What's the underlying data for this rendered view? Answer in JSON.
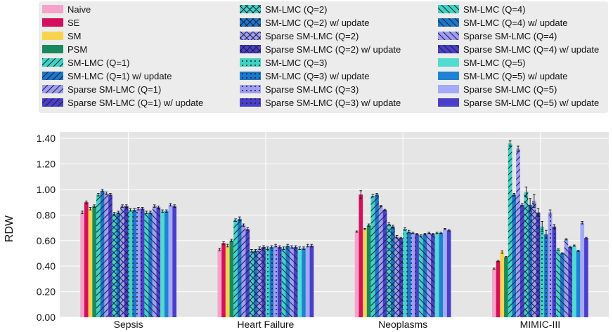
{
  "chart_data": {
    "type": "bar",
    "title": "",
    "xlabel": "",
    "ylabel": "RDW",
    "ylim": [
      0,
      1.45
    ],
    "yticks": [
      0.0,
      0.2,
      0.4,
      0.6,
      0.8,
      1.0,
      1.2,
      1.4
    ],
    "ytick_labels": [
      "0.00",
      "0.20",
      "0.40",
      "0.60",
      "0.80",
      "1.00",
      "1.20",
      "1.40"
    ],
    "grid": true,
    "legend_position": "top",
    "categories": [
      "Sepsis",
      "Heart Failure",
      "Neoplasms",
      "MIMIC-III"
    ],
    "series": [
      {
        "name": "Naive",
        "color": "#f4a3c9",
        "hatch": "none",
        "values": [
          0.82,
          0.53,
          0.67,
          0.38
        ],
        "errors": [
          0.01,
          0.01,
          0.005,
          0.005
        ]
      },
      {
        "name": "SE",
        "color": "#d40f5b",
        "hatch": "none",
        "values": [
          0.9,
          0.58,
          0.96,
          0.44
        ],
        "errors": [
          0.01,
          0.01,
          0.03,
          0.005
        ]
      },
      {
        "name": "SM",
        "color": "#f8d34e",
        "hatch": "none",
        "values": [
          0.85,
          0.56,
          0.69,
          0.51
        ],
        "errors": [
          0.01,
          0.01,
          0.005,
          0.01
        ]
      },
      {
        "name": "PSM",
        "color": "#1a8a5e",
        "hatch": "none",
        "values": [
          0.87,
          0.6,
          0.72,
          0.47
        ],
        "errors": [
          0.01,
          0.01,
          0.01,
          0.005
        ]
      },
      {
        "name": "SM-LMC (Q=1)",
        "color": "#3fd4bf",
        "hatch": "/",
        "values": [
          0.96,
          0.76,
          0.95,
          1.36
        ],
        "errors": [
          0.01,
          0.01,
          0.01,
          0.02
        ]
      },
      {
        "name": "SM-LMC (Q=1) w/ update",
        "color": "#1c77c9",
        "hatch": "/",
        "values": [
          0.99,
          0.77,
          0.96,
          0.96
        ],
        "errors": [
          0.01,
          0.015,
          0.01,
          0.01
        ]
      },
      {
        "name": "Sparse SM-LMC (Q=1)",
        "color": "#9f9df2",
        "hatch": "/",
        "values": [
          0.97,
          0.72,
          0.87,
          1.32
        ],
        "errors": [
          0.01,
          0.01,
          0.005,
          0.02
        ]
      },
      {
        "name": "Sparse SM-LMC (Q=1) w/ update",
        "color": "#4a3fc9",
        "hatch": "/",
        "values": [
          0.96,
          0.69,
          0.84,
          0.88
        ],
        "errors": [
          0.01,
          0.01,
          0.005,
          0.01
        ]
      },
      {
        "name": "SM-LMC (Q=2)",
        "color": "#3fd4bf",
        "hatch": "x",
        "values": [
          0.81,
          0.52,
          0.73,
          0.98
        ],
        "errors": [
          0.01,
          0.01,
          0.01,
          0.04
        ]
      },
      {
        "name": "SM-LMC (Q=2) w/ update",
        "color": "#1c77c9",
        "hatch": "x",
        "values": [
          0.82,
          0.52,
          0.71,
          0.88
        ],
        "errors": [
          0.01,
          0.01,
          0.01,
          0.05
        ]
      },
      {
        "name": "Sparse SM-LMC (Q=2)",
        "color": "#9f9df2",
        "hatch": "x",
        "values": [
          0.87,
          0.54,
          0.63,
          0.91
        ],
        "errors": [
          0.01,
          0.01,
          0.01,
          0.05
        ]
      },
      {
        "name": "Sparse SM-LMC (Q=2) w/ update",
        "color": "#4a3fc9",
        "hatch": "x",
        "values": [
          0.87,
          0.55,
          0.62,
          0.82
        ],
        "errors": [
          0.01,
          0.01,
          0.005,
          0.03
        ]
      },
      {
        "name": "SM-LMC (Q=3)",
        "color": "#3fd4bf",
        "hatch": ".",
        "values": [
          0.84,
          0.54,
          0.69,
          0.71
        ],
        "errors": [
          0.01,
          0.01,
          0.01,
          0.04
        ]
      },
      {
        "name": "SM-LMC (Q=3) w/ update",
        "color": "#1c77c9",
        "hatch": ".",
        "values": [
          0.84,
          0.55,
          0.67,
          0.65
        ],
        "errors": [
          0.01,
          0.01,
          0.01,
          0.03
        ]
      },
      {
        "name": "Sparse SM-LMC (Q=3)",
        "color": "#9f9df2",
        "hatch": ".",
        "values": [
          0.85,
          0.56,
          0.66,
          0.82
        ],
        "errors": [
          0.01,
          0.01,
          0.005,
          0.02
        ]
      },
      {
        "name": "Sparse SM-LMC (Q=3) w/ update",
        "color": "#4a3fc9",
        "hatch": ".",
        "values": [
          0.85,
          0.55,
          0.65,
          0.71
        ],
        "errors": [
          0.01,
          0.01,
          0.005,
          0.015
        ]
      },
      {
        "name": "SM-LMC (Q=4)",
        "color": "#3fd4bf",
        "hatch": "\\",
        "values": [
          0.82,
          0.54,
          0.64,
          0.53
        ],
        "errors": [
          0.01,
          0.01,
          0.005,
          0.005
        ]
      },
      {
        "name": "SM-LMC (Q=4) w/ update",
        "color": "#1c77c9",
        "hatch": "\\",
        "values": [
          0.82,
          0.56,
          0.65,
          0.5
        ],
        "errors": [
          0.01,
          0.01,
          0.005,
          0.005
        ]
      },
      {
        "name": "Sparse SM-LMC (Q=4)",
        "color": "#9f9df2",
        "hatch": "\\",
        "values": [
          0.87,
          0.55,
          0.66,
          0.61
        ],
        "errors": [
          0.01,
          0.01,
          0.005,
          0.005
        ]
      },
      {
        "name": "Sparse SM-LMC (Q=4) w/ update",
        "color": "#4a3fc9",
        "hatch": "\\",
        "values": [
          0.86,
          0.55,
          0.65,
          0.55
        ],
        "errors": [
          0.01,
          0.01,
          0.005,
          0.005
        ]
      },
      {
        "name": "SM-LMC (Q=5)",
        "color": "#52dbd1",
        "hatch": "none",
        "values": [
          0.83,
          0.54,
          0.66,
          0.56
        ],
        "errors": [
          0.01,
          0.01,
          0.005,
          0.005
        ]
      },
      {
        "name": "SM-LMC (Q=5) w/ update",
        "color": "#1f82d4",
        "hatch": "none",
        "values": [
          0.83,
          0.54,
          0.66,
          0.52
        ],
        "errors": [
          0.01,
          0.01,
          0.005,
          0.005
        ]
      },
      {
        "name": "Sparse SM-LMC (Q=5)",
        "color": "#a3aaf7",
        "hatch": "none",
        "values": [
          0.88,
          0.56,
          0.69,
          0.74
        ],
        "errors": [
          0.01,
          0.01,
          0.005,
          0.01
        ]
      },
      {
        "name": "Sparse SM-LMC (Q=5) w/ update",
        "color": "#4a3fc9",
        "hatch": "none",
        "values": [
          0.87,
          0.56,
          0.68,
          0.62
        ],
        "errors": [
          0.01,
          0.01,
          0.005,
          0.005
        ]
      }
    ]
  }
}
